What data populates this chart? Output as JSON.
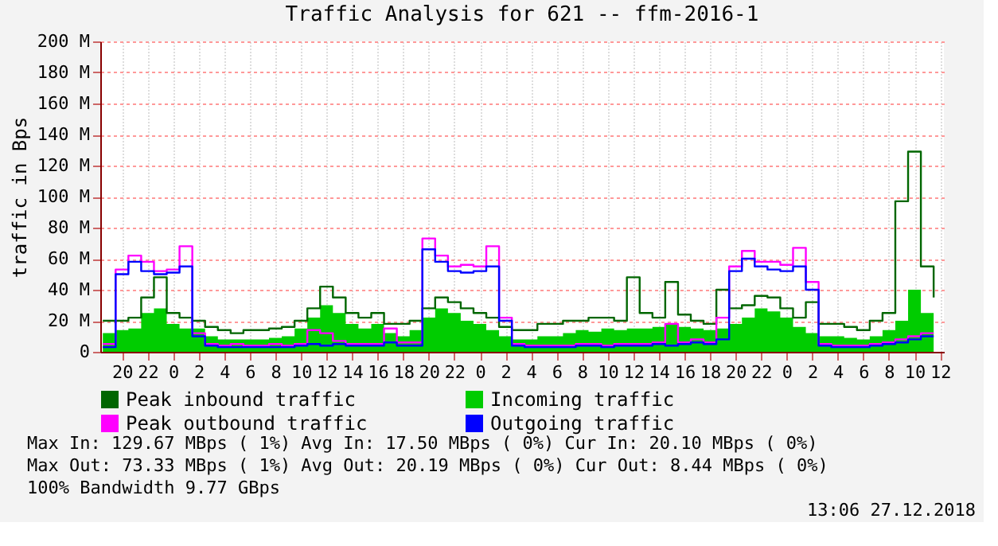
{
  "chart_data": {
    "type": "step",
    "title": "Traffic Analysis for 621 -- ffm-2016-1",
    "ylabel": "traffic in Bps",
    "x": [
      "2018-12-24T18:30",
      "2018-12-24T19:30",
      "2018-12-24T20:30",
      "2018-12-24T21:30",
      "2018-12-24T22:30",
      "2018-12-24T23:30",
      "2018-12-25T00:30",
      "2018-12-25T01:30",
      "2018-12-25T02:30",
      "2018-12-25T03:30",
      "2018-12-25T04:30",
      "2018-12-25T05:30",
      "2018-12-25T06:30",
      "2018-12-25T07:30",
      "2018-12-25T08:30",
      "2018-12-25T09:30",
      "2018-12-25T10:30",
      "2018-12-25T11:30",
      "2018-12-25T12:30",
      "2018-12-25T13:30",
      "2018-12-25T14:30",
      "2018-12-25T15:30",
      "2018-12-25T16:30",
      "2018-12-25T17:30",
      "2018-12-25T18:30",
      "2018-12-25T19:30",
      "2018-12-25T20:30",
      "2018-12-25T21:30",
      "2018-12-25T22:30",
      "2018-12-25T23:30",
      "2018-12-26T00:30",
      "2018-12-26T01:30",
      "2018-12-26T02:30",
      "2018-12-26T03:30",
      "2018-12-26T04:30",
      "2018-12-26T05:30",
      "2018-12-26T06:30",
      "2018-12-26T07:30",
      "2018-12-26T08:30",
      "2018-12-26T09:30",
      "2018-12-26T10:30",
      "2018-12-26T11:30",
      "2018-12-26T12:30",
      "2018-12-26T13:30",
      "2018-12-26T14:30",
      "2018-12-26T15:30",
      "2018-12-26T16:30",
      "2018-12-26T17:30",
      "2018-12-26T18:30",
      "2018-12-26T19:30",
      "2018-12-26T20:30",
      "2018-12-26T21:30",
      "2018-12-26T22:30",
      "2018-12-26T23:30",
      "2018-12-27T00:30",
      "2018-12-27T01:30",
      "2018-12-27T02:30",
      "2018-12-27T03:30",
      "2018-12-27T04:30",
      "2018-12-27T05:30",
      "2018-12-27T06:30",
      "2018-12-27T07:30",
      "2018-12-27T08:30",
      "2018-12-27T09:30",
      "2018-12-27T10:30",
      "2018-12-27T11:30"
    ],
    "series": [
      {
        "name": "Peak inbound traffic",
        "color": "#006600",
        "values": [
          20,
          20,
          22,
          35,
          48,
          25,
          22,
          20,
          16,
          14,
          12,
          14,
          14,
          15,
          16,
          20,
          28,
          42,
          35,
          25,
          22,
          25,
          18,
          18,
          20,
          28,
          35,
          32,
          28,
          25,
          22,
          16,
          14,
          14,
          18,
          18,
          20,
          20,
          22,
          22,
          20,
          48,
          25,
          22,
          45,
          24,
          20,
          18,
          40,
          28,
          30,
          36,
          35,
          28,
          22,
          32,
          18,
          18,
          16,
          14,
          20,
          25,
          97,
          129,
          55,
          35
        ]
      },
      {
        "name": "Incoming traffic",
        "type": "area",
        "color": "#00cc00",
        "values": [
          12,
          14,
          15,
          25,
          28,
          18,
          15,
          15,
          10,
          8,
          8,
          8,
          8,
          9,
          10,
          15,
          22,
          30,
          25,
          18,
          15,
          18,
          12,
          10,
          14,
          22,
          28,
          25,
          20,
          18,
          14,
          10,
          8,
          8,
          10,
          10,
          12,
          14,
          13,
          15,
          14,
          15,
          15,
          16,
          18,
          16,
          15,
          14,
          15,
          18,
          22,
          28,
          26,
          22,
          16,
          12,
          10,
          10,
          9,
          8,
          10,
          14,
          20,
          40,
          25,
          22
        ]
      },
      {
        "name": "Peak outbound traffic",
        "color": "#ff00ff",
        "values": [
          5,
          53,
          62,
          58,
          52,
          53,
          68,
          12,
          5,
          4,
          5,
          4,
          4,
          5,
          4,
          5,
          14,
          12,
          7,
          5,
          5,
          5,
          15,
          6,
          6,
          73,
          62,
          55,
          56,
          55,
          68,
          22,
          5,
          4,
          4,
          4,
          4,
          5,
          5,
          4,
          5,
          5,
          5,
          6,
          18,
          6,
          8,
          6,
          22,
          55,
          65,
          58,
          58,
          56,
          67,
          45,
          5,
          4,
          4,
          4,
          5,
          6,
          8,
          10,
          12,
          12
        ]
      },
      {
        "name": "Outgoing traffic",
        "color": "#0000ff",
        "values": [
          3,
          50,
          58,
          52,
          50,
          51,
          55,
          10,
          4,
          3,
          3,
          3,
          3,
          3,
          3,
          4,
          5,
          4,
          5,
          4,
          4,
          4,
          6,
          4,
          4,
          66,
          58,
          52,
          51,
          52,
          55,
          20,
          4,
          3,
          3,
          3,
          3,
          4,
          4,
          3,
          4,
          4,
          4,
          5,
          4,
          5,
          6,
          5,
          8,
          52,
          60,
          55,
          53,
          52,
          55,
          40,
          4,
          3,
          3,
          3,
          4,
          5,
          6,
          8,
          10,
          10
        ]
      }
    ],
    "xlim": [
      "2018-12-24T18:18",
      "2018-12-27T12:18"
    ],
    "xticks": [
      {
        "value": "2018-12-24T20:00",
        "label": "20"
      },
      {
        "value": "2018-12-24T22:00",
        "label": "22"
      },
      {
        "value": "2018-12-25T00:00",
        "label": "0"
      },
      {
        "value": "2018-12-25T02:00",
        "label": "2"
      },
      {
        "value": "2018-12-25T04:00",
        "label": "4"
      },
      {
        "value": "2018-12-25T06:00",
        "label": "6"
      },
      {
        "value": "2018-12-25T08:00",
        "label": "8"
      },
      {
        "value": "2018-12-25T10:00",
        "label": "10"
      },
      {
        "value": "2018-12-25T12:00",
        "label": "12"
      },
      {
        "value": "2018-12-25T14:00",
        "label": "14"
      },
      {
        "value": "2018-12-25T16:00",
        "label": "16"
      },
      {
        "value": "2018-12-25T18:00",
        "label": "18"
      },
      {
        "value": "2018-12-25T20:00",
        "label": "20"
      },
      {
        "value": "2018-12-25T22:00",
        "label": "22"
      },
      {
        "value": "2018-12-26T00:00",
        "label": "0"
      },
      {
        "value": "2018-12-26T02:00",
        "label": "2"
      },
      {
        "value": "2018-12-26T04:00",
        "label": "4"
      },
      {
        "value": "2018-12-26T06:00",
        "label": "6"
      },
      {
        "value": "2018-12-26T08:00",
        "label": "8"
      },
      {
        "value": "2018-12-26T10:00",
        "label": "10"
      },
      {
        "value": "2018-12-26T12:00",
        "label": "12"
      },
      {
        "value": "2018-12-26T14:00",
        "label": "14"
      },
      {
        "value": "2018-12-26T16:00",
        "label": "16"
      },
      {
        "value": "2018-12-26T18:00",
        "label": "18"
      },
      {
        "value": "2018-12-26T20:00",
        "label": "20"
      },
      {
        "value": "2018-12-26T22:00",
        "label": "22"
      },
      {
        "value": "2018-12-27T00:00",
        "label": "0"
      },
      {
        "value": "2018-12-27T02:00",
        "label": "2"
      },
      {
        "value": "2018-12-27T04:00",
        "label": "4"
      },
      {
        "value": "2018-12-27T06:00",
        "label": "6"
      },
      {
        "value": "2018-12-27T08:00",
        "label": "8"
      },
      {
        "value": "2018-12-27T10:00",
        "label": "10"
      },
      {
        "value": "2018-12-27T12:00",
        "label": "12"
      }
    ],
    "ylim": [
      0,
      200
    ],
    "yticks": [
      0,
      {
        "value": 20,
        "label": "20 M"
      },
      {
        "value": 40,
        "label": "40 M"
      },
      {
        "value": 60,
        "label": "60 M"
      },
      {
        "value": 80,
        "label": "80 M"
      },
      {
        "value": 100,
        "label": "100 M"
      },
      {
        "value": 120,
        "label": "120 M"
      },
      {
        "value": 140,
        "label": "140 M"
      },
      {
        "value": 160,
        "label": "160 M"
      },
      {
        "value": 180,
        "label": "180 M"
      },
      {
        "value": 200,
        "label": "200 M"
      }
    ],
    "grid": true,
    "legend": "bottom",
    "annotations": [
      "Max In: 129.67 MBps ( 1%)  Avg In:  17.50 MBps ( 0%)  Cur In:  20.10 MBps ( 0%)",
      "Max Out: 73.33 MBps ( 1%)  Avg Out: 20.19 MBps ( 0%)  Cur Out:  8.44 MBps ( 0%)",
      "100% Bandwidth 9.77 GBps",
      "13:06 27.12.2018"
    ]
  }
}
